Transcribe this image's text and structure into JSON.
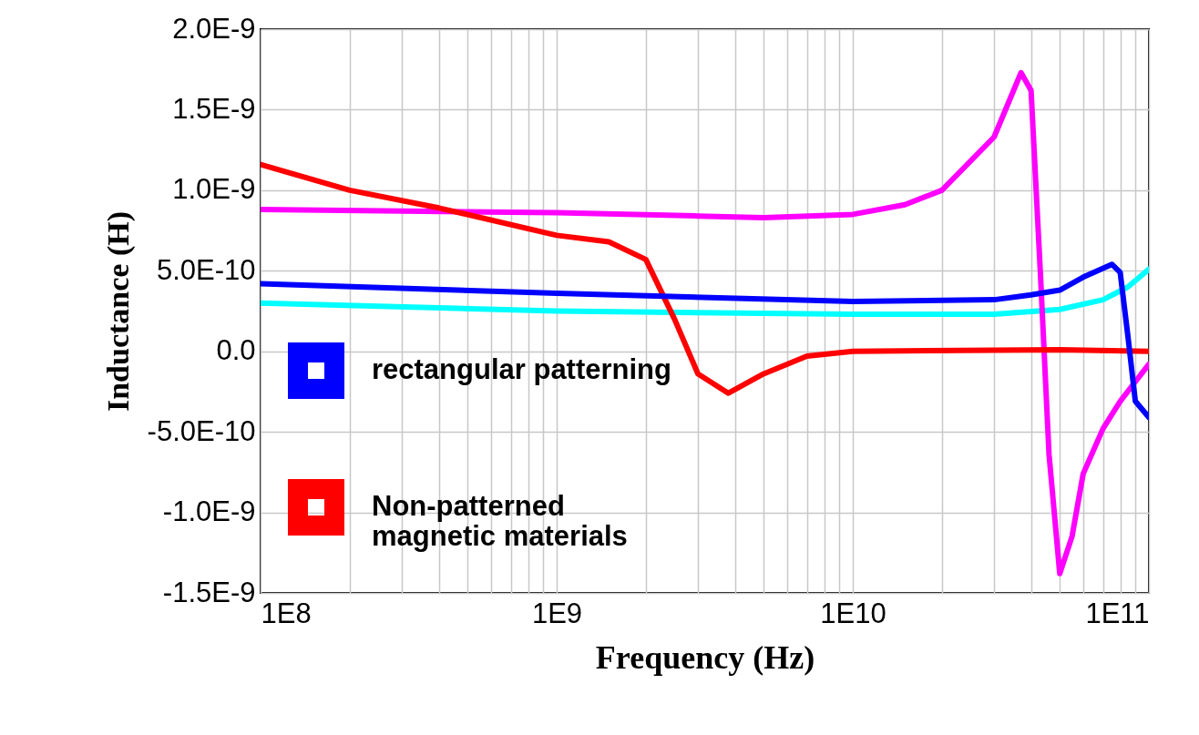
{
  "chart_data": {
    "type": "line",
    "xlabel": "Frequency (Hz)",
    "ylabel": "Inductance (H)",
    "log": "x",
    "grid": true,
    "legend": "bottom left",
    "xlim": [
      100000000.0,
      100000000000.0
    ],
    "xticks": [
      {
        "value": 100000000.0,
        "label": "1E8"
      },
      {
        "value": 200000000.0,
        "label": null
      },
      {
        "value": 300000000.0,
        "label": null
      },
      {
        "value": 400000000.0,
        "label": null
      },
      {
        "value": 500000000.0,
        "label": null
      },
      {
        "value": 600000000.0,
        "label": null
      },
      {
        "value": 700000000.0,
        "label": null
      },
      {
        "value": 800000000.0,
        "label": null
      },
      {
        "value": 900000000.0,
        "label": null
      },
      {
        "value": 1000000000.0,
        "label": "1E9"
      },
      {
        "value": 2000000000.0,
        "label": null
      },
      {
        "value": 3000000000.0,
        "label": null
      },
      {
        "value": 4000000000.0,
        "label": null
      },
      {
        "value": 5000000000.0,
        "label": null
      },
      {
        "value": 6000000000.0,
        "label": null
      },
      {
        "value": 7000000000.0,
        "label": null
      },
      {
        "value": 8000000000.0,
        "label": null
      },
      {
        "value": 9000000000.0,
        "label": null
      },
      {
        "value": 10000000000.0,
        "label": "1E10"
      },
      {
        "value": 20000000000.0,
        "label": null
      },
      {
        "value": 30000000000.0,
        "label": null
      },
      {
        "value": 40000000000.0,
        "label": null
      },
      {
        "value": 50000000000.0,
        "label": null
      },
      {
        "value": 60000000000.0,
        "label": null
      },
      {
        "value": 70000000000.0,
        "label": null
      },
      {
        "value": 80000000000.0,
        "label": null
      },
      {
        "value": 90000000000.0,
        "label": null
      },
      {
        "value": 100000000000.0,
        "label": "1E11"
      }
    ],
    "ylim": [
      -1.5e-09,
      2e-09
    ],
    "yticks": [
      {
        "value": -1.5e-09,
        "label": "-1.5E-9"
      },
      {
        "value": -1e-09,
        "label": "-1.0E-9"
      },
      {
        "value": -5e-10,
        "label": "-5.0E-10"
      },
      {
        "value": 0,
        "label": "0.0"
      },
      {
        "value": 5e-10,
        "label": "5.0E-10"
      },
      {
        "value": 1e-09,
        "label": "1.0E-9"
      },
      {
        "value": 1.5e-09,
        "label": "1.5E-9"
      },
      {
        "value": 2e-09,
        "label": "2.0E-9"
      }
    ],
    "series": [
      {
        "name": "rectangular patterning",
        "color": "#0000ff",
        "x": [
          100000000.0,
          1000000000.0,
          10000000000.0,
          30000000000.0,
          40000000000.0,
          50000000000.0,
          60000000000.0,
          75000000000.0,
          80000000000.0,
          85000000000.0,
          90000000000.0,
          100000000000.0
        ],
        "values": [
          4.2e-10,
          3.6e-10,
          3.1e-10,
          3.2e-10,
          3.5e-10,
          3.8e-10,
          4.6e-10,
          5.4e-10,
          4.9e-10,
          9e-11,
          -3.1e-10,
          -4.1e-10
        ]
      },
      {
        "name": "Non-patterned magnetic materials",
        "color": "#ff0000",
        "x": [
          100000000.0,
          200000000.0,
          400000000.0,
          1000000000.0,
          1500000000.0,
          2000000000.0,
          2500000000.0,
          3000000000.0,
          3800000000.0,
          5000000000.0,
          7000000000.0,
          10000000000.0,
          50000000000.0,
          100000000000.0
        ],
        "values": [
          1.16e-09,
          1e-09,
          8.9e-10,
          7.2e-10,
          6.8e-10,
          5.7e-10,
          2e-10,
          -1.4e-10,
          -2.6e-10,
          -1.4e-10,
          -3e-11,
          0,
          1e-11,
          0
        ]
      },
      {
        "color": "#ff00ff",
        "x": [
          100000000.0,
          1000000000.0,
          3000000000.0,
          5000000000.0,
          10000000000.0,
          15000000000.0,
          20000000000.0,
          30000000000.0,
          37000000000.0,
          40000000000.0,
          43000000000.0,
          46000000000.0,
          50000000000.0,
          55000000000.0,
          60000000000.0,
          70000000000.0,
          80000000000.0,
          100000000000.0
        ],
        "values": [
          8.8e-10,
          8.6e-10,
          8.4e-10,
          8.3e-10,
          8.5e-10,
          9.1e-10,
          1e-09,
          1.33e-09,
          1.73e-09,
          1.62e-09,
          4.9e-10,
          -6.4e-10,
          -1.38e-09,
          -1.15e-09,
          -7.6e-10,
          -4.8e-10,
          -3.1e-10,
          -8e-11
        ]
      },
      {
        "color": "#00ffff",
        "x": [
          100000000.0,
          1000000000.0,
          10000000000.0,
          30000000000.0,
          50000000000.0,
          70000000000.0,
          85000000000.0,
          100000000000.0
        ],
        "values": [
          3e-10,
          2.5e-10,
          2.3e-10,
          2.3e-10,
          2.6e-10,
          3.2e-10,
          4e-10,
          5.1e-10
        ]
      }
    ]
  }
}
